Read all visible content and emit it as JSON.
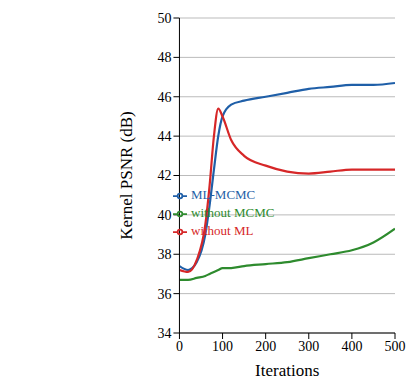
{
  "chart_data": {
    "type": "line",
    "x_label": "Iterations",
    "y_label": "Kernel PSNR (dB)",
    "x": [
      0,
      20,
      40,
      60,
      70,
      80,
      90,
      100,
      120,
      150,
      200,
      250,
      300,
      350,
      400,
      450,
      500
    ],
    "series": [
      {
        "name": "ML-MCMC",
        "color": "#1f5fa8",
        "values": [
          37.4,
          37.2,
          37.6,
          39.0,
          40.5,
          42.3,
          44.0,
          45.0,
          45.6,
          45.8,
          46.0,
          46.2,
          46.4,
          46.5,
          46.6,
          46.6,
          46.7
        ]
      },
      {
        "name": "without MCMC",
        "color": "#2e8b2e",
        "values": [
          36.7,
          36.7,
          36.8,
          36.9,
          37.0,
          37.1,
          37.2,
          37.3,
          37.3,
          37.4,
          37.5,
          37.6,
          37.8,
          38.0,
          38.2,
          38.6,
          39.3
        ]
      },
      {
        "name": "without ML",
        "color": "#d62728",
        "values": [
          37.2,
          37.1,
          37.7,
          39.5,
          41.5,
          44.0,
          45.4,
          45.0,
          43.8,
          43.0,
          42.5,
          42.2,
          42.1,
          42.2,
          42.3,
          42.3,
          42.3
        ]
      }
    ],
    "xlim": [
      0,
      500
    ],
    "xticks": [
      0,
      100,
      200,
      300,
      400,
      500
    ],
    "ylim": [
      34,
      50
    ],
    "yticks": [
      34,
      36,
      38,
      40,
      42,
      44,
      46,
      48,
      50
    ],
    "grid": true,
    "legend": "center"
  }
}
